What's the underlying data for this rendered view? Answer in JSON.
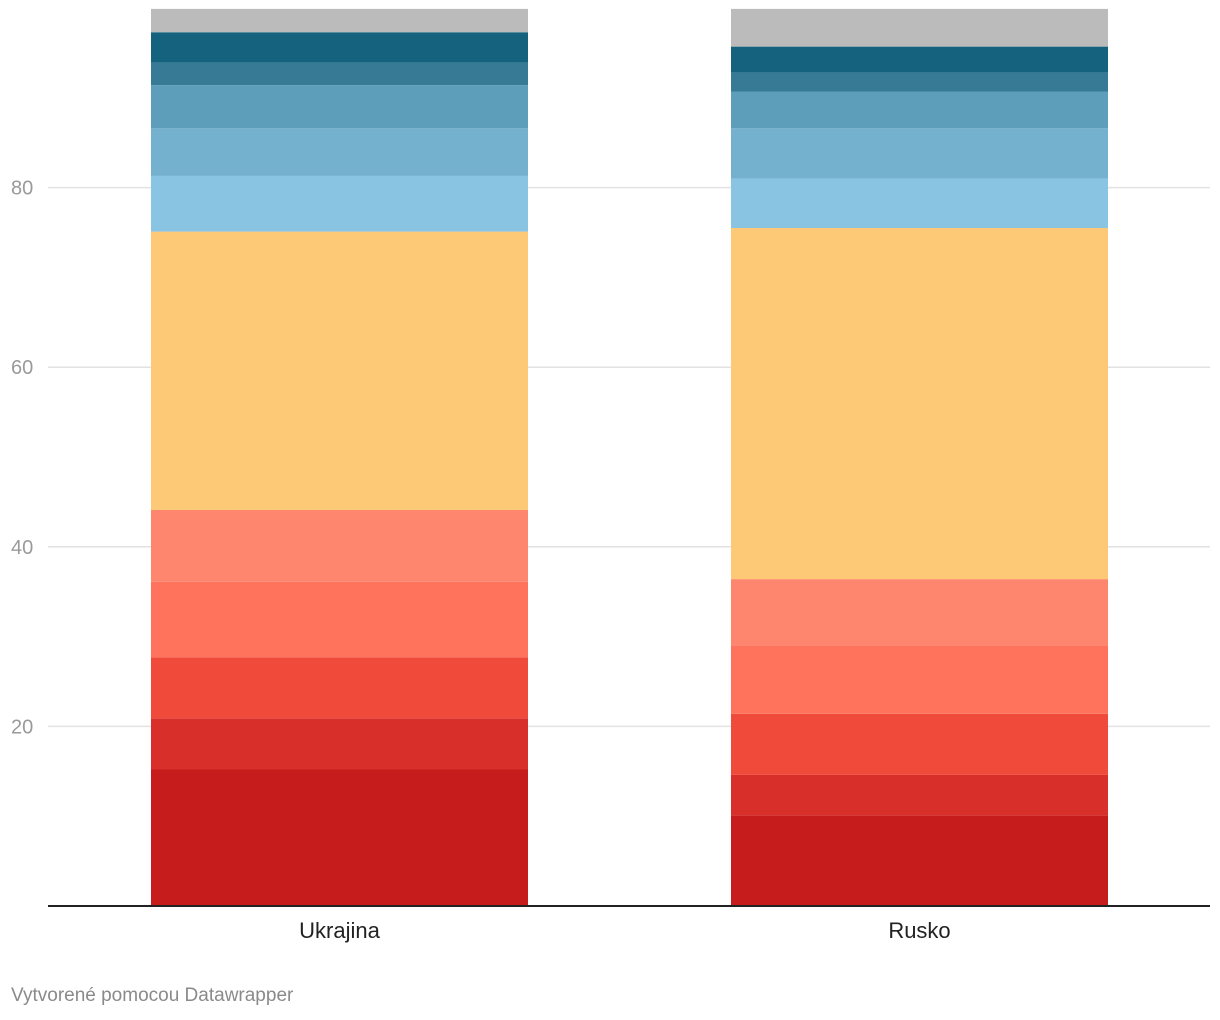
{
  "chart_data": {
    "type": "bar",
    "stacked": true,
    "categories": [
      "Ukrajina",
      "Rusko"
    ],
    "series": [
      {
        "color": "#c71c1c",
        "values": [
          15.2,
          10.1
        ]
      },
      {
        "color": "#d92f2a",
        "values": [
          5.7,
          4.5
        ]
      },
      {
        "color": "#ef4a3a",
        "values": [
          6.8,
          6.8
        ]
      },
      {
        "color": "#ff735c",
        "values": [
          8.4,
          7.6
        ]
      },
      {
        "color": "#ff866e",
        "values": [
          8.0,
          7.4
        ]
      },
      {
        "color": "#fec976",
        "values": [
          31.0,
          39.1
        ]
      },
      {
        "color": "#89c4e2",
        "values": [
          6.2,
          5.5
        ]
      },
      {
        "color": "#74b1cf",
        "values": [
          5.3,
          5.6
        ]
      },
      {
        "color": "#5d9fbb",
        "values": [
          4.8,
          4.1
        ]
      },
      {
        "color": "#367a96",
        "values": [
          2.5,
          2.1
        ]
      },
      {
        "color": "#15627e",
        "values": [
          3.4,
          2.9
        ]
      },
      {
        "color": "#bbbbbb",
        "values": [
          2.6,
          4.2
        ]
      }
    ],
    "yticks": [
      20,
      40,
      60,
      80
    ],
    "ylim": [
      0,
      100
    ],
    "grid": true
  },
  "footer": "Vytvorené pomocou Datawrapper"
}
